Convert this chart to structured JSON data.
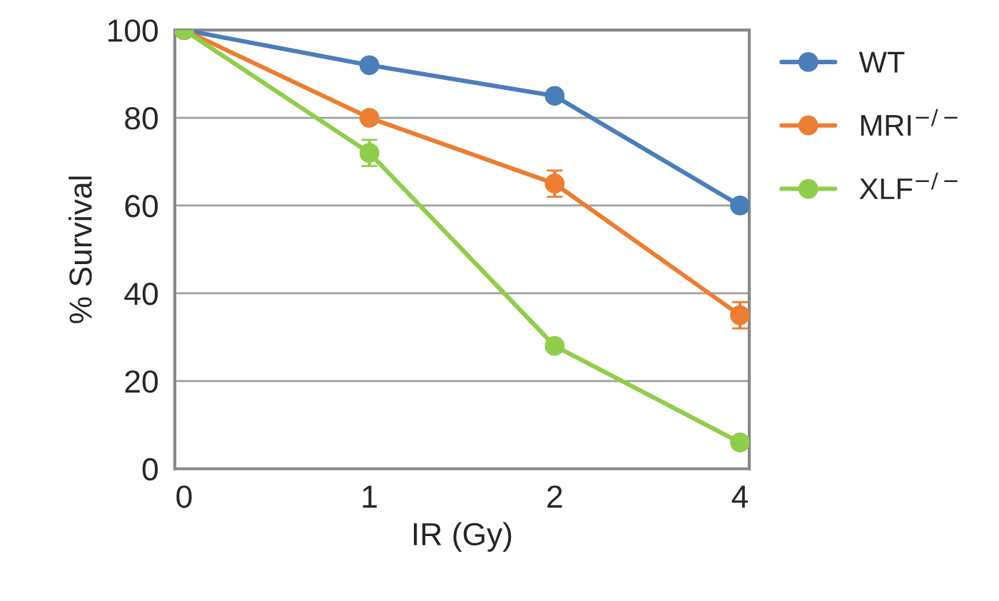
{
  "chart_data": {
    "type": "line",
    "xlabel": "IR (Gy)",
    "ylabel": "% Survival",
    "categories": [
      "0",
      "1",
      "2",
      "4"
    ],
    "series": [
      {
        "name": "WT",
        "color": "#4a7ebb",
        "values": [
          100,
          92,
          85,
          60
        ]
      },
      {
        "name": "MRI$^{−/−}$",
        "color": "#ed7d31",
        "values": [
          100,
          80,
          65,
          35
        ],
        "errors": [
          null,
          null,
          3,
          3
        ]
      },
      {
        "name": "XLF$^{−/−}$",
        "color": "#8fce4a",
        "values": [
          100,
          72,
          28,
          6
        ],
        "errors": [
          null,
          3,
          null,
          null
        ]
      }
    ],
    "ylim": [
      0,
      100
    ],
    "yticks": [
      0,
      20,
      40,
      60,
      80,
      100
    ],
    "grid": "y",
    "legend": "right",
    "marker": "circle"
  }
}
